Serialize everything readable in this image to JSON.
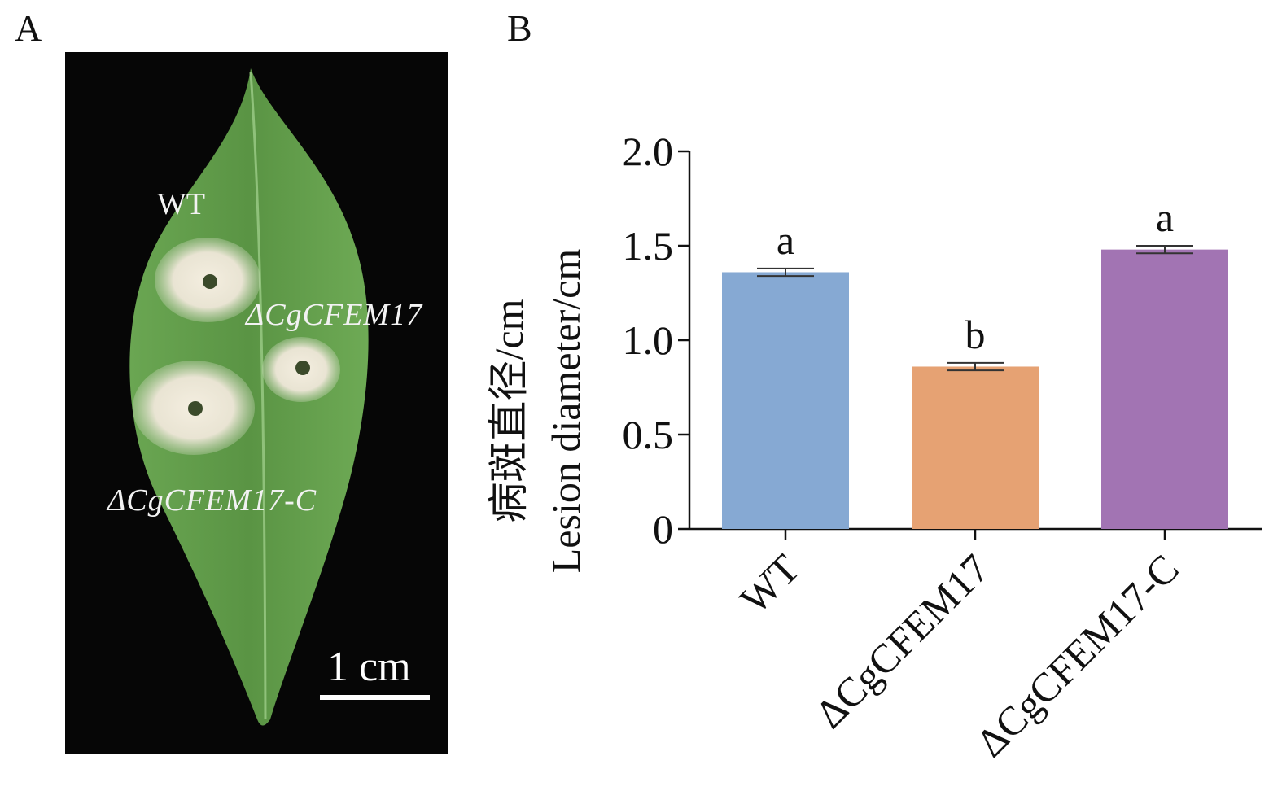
{
  "panels": {
    "a_label": "A",
    "b_label": "B"
  },
  "photo": {
    "wt_label": "WT",
    "mutant_label": "ΔCgCFEM17",
    "complement_label": "ΔCgCFEM17-C",
    "scale_label": "1 cm"
  },
  "colors": {
    "wt": "#86a9d3",
    "mutant": "#e6a273",
    "complement": "#a274b3",
    "axis": "#111111",
    "leaf": "#5f9a4a",
    "background": "#060606"
  },
  "chart_data": {
    "type": "bar",
    "categories": [
      "WT",
      "ΔCgCFEM17",
      "ΔCgCFEM17-C"
    ],
    "values": [
      1.36,
      0.86,
      1.48
    ],
    "errors": [
      0.02,
      0.02,
      0.02
    ],
    "significance": [
      "a",
      "b",
      "a"
    ],
    "ylabel": "病斑直径/cm",
    "ylabel_en": "Lesion diameter/cm",
    "yticks": [
      "0",
      "0.5",
      "1.0",
      "1.5",
      "2.0"
    ],
    "ylim": [
      0,
      2.0
    ],
    "grid": false
  }
}
